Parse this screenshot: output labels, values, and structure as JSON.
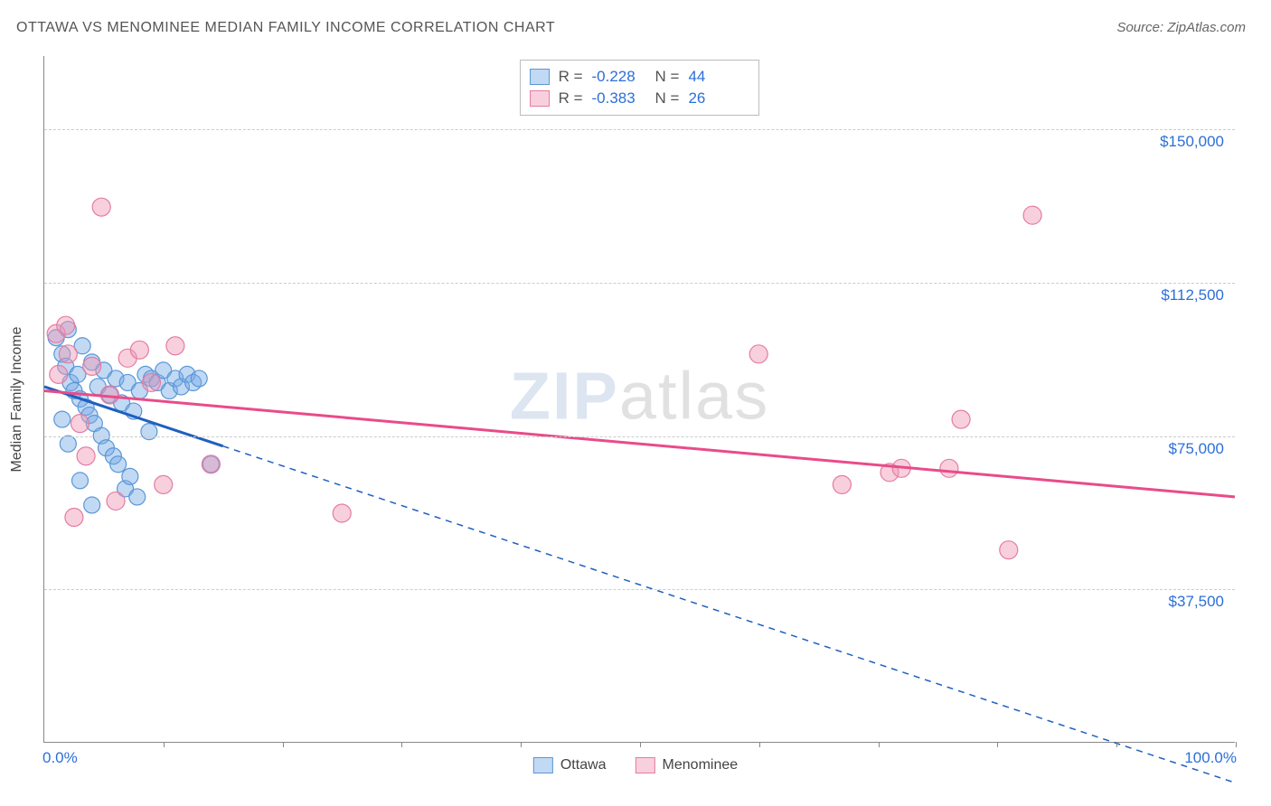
{
  "title": "OTTAWA VS MENOMINEE MEDIAN FAMILY INCOME CORRELATION CHART",
  "source": "Source: ZipAtlas.com",
  "watermark": {
    "part1": "ZIP",
    "part2": "atlas"
  },
  "yaxis_title": "Median Family Income",
  "chart": {
    "type": "scatter",
    "background_color": "#ffffff",
    "grid_color": "#cccccc",
    "axis_color": "#888888",
    "text_color": "#555555",
    "value_color": "#2c6fd8",
    "xlim": [
      0,
      100
    ],
    "ylim": [
      0,
      168000
    ],
    "x_ticks": [
      10,
      20,
      30,
      40,
      50,
      60,
      70,
      80,
      90,
      100
    ],
    "x_tick_labels": {
      "start": "0.0%",
      "end": "100.0%"
    },
    "y_gridlines": [
      {
        "v": 37500,
        "label": "$37,500"
      },
      {
        "v": 75000,
        "label": "$75,000"
      },
      {
        "v": 112500,
        "label": "$112,500"
      },
      {
        "v": 150000,
        "label": "$150,000"
      }
    ],
    "series": [
      {
        "name": "Ottawa",
        "fill": "rgba(120,170,230,0.45)",
        "stroke": "#5a97d6",
        "line_color": "#1f5fbf",
        "marker_r": 9,
        "R": "-0.228",
        "N": "44",
        "trend": {
          "x1": 0,
          "y1": 87000,
          "x2": 100,
          "y2": -10000,
          "solid_until_x": 15
        },
        "points": [
          {
            "x": 1,
            "y": 99000
          },
          {
            "x": 1.5,
            "y": 95000
          },
          {
            "x": 1.8,
            "y": 92000
          },
          {
            "x": 2,
            "y": 101000
          },
          {
            "x": 2.2,
            "y": 88000
          },
          {
            "x": 2.5,
            "y": 86000
          },
          {
            "x": 2.8,
            "y": 90000
          },
          {
            "x": 3,
            "y": 84000
          },
          {
            "x": 3.2,
            "y": 97000
          },
          {
            "x": 3.5,
            "y": 82000
          },
          {
            "x": 3.8,
            "y": 80000
          },
          {
            "x": 4,
            "y": 93000
          },
          {
            "x": 4.2,
            "y": 78000
          },
          {
            "x": 4.5,
            "y": 87000
          },
          {
            "x": 4.8,
            "y": 75000
          },
          {
            "x": 5,
            "y": 91000
          },
          {
            "x": 5.2,
            "y": 72000
          },
          {
            "x": 5.5,
            "y": 85000
          },
          {
            "x": 5.8,
            "y": 70000
          },
          {
            "x": 6,
            "y": 89000
          },
          {
            "x": 6.2,
            "y": 68000
          },
          {
            "x": 6.5,
            "y": 83000
          },
          {
            "x": 6.8,
            "y": 62000
          },
          {
            "x": 7,
            "y": 88000
          },
          {
            "x": 7.2,
            "y": 65000
          },
          {
            "x": 7.5,
            "y": 81000
          },
          {
            "x": 7.8,
            "y": 60000
          },
          {
            "x": 8,
            "y": 86000
          },
          {
            "x": 8.5,
            "y": 90000
          },
          {
            "x": 8.8,
            "y": 76000
          },
          {
            "x": 9,
            "y": 89000
          },
          {
            "x": 9.5,
            "y": 88000
          },
          {
            "x": 10,
            "y": 91000
          },
          {
            "x": 10.5,
            "y": 86000
          },
          {
            "x": 11,
            "y": 89000
          },
          {
            "x": 11.5,
            "y": 87000
          },
          {
            "x": 12,
            "y": 90000
          },
          {
            "x": 12.5,
            "y": 88000
          },
          {
            "x": 13,
            "y": 89000
          },
          {
            "x": 14,
            "y": 68000
          },
          {
            "x": 4,
            "y": 58000
          },
          {
            "x": 3,
            "y": 64000
          },
          {
            "x": 2,
            "y": 73000
          },
          {
            "x": 1.5,
            "y": 79000
          }
        ]
      },
      {
        "name": "Menominee",
        "fill": "rgba(240,150,180,0.45)",
        "stroke": "#e47ba3",
        "line_color": "#e94b8a",
        "marker_r": 10,
        "R": "-0.383",
        "N": "26",
        "trend": {
          "x1": 0,
          "y1": 86000,
          "x2": 100,
          "y2": 60000,
          "solid_until_x": 100
        },
        "points": [
          {
            "x": 1,
            "y": 100000
          },
          {
            "x": 2,
            "y": 95000
          },
          {
            "x": 3,
            "y": 78000
          },
          {
            "x": 4,
            "y": 92000
          },
          {
            "x": 4.8,
            "y": 131000
          },
          {
            "x": 5.5,
            "y": 85000
          },
          {
            "x": 6,
            "y": 59000
          },
          {
            "x": 7,
            "y": 94000
          },
          {
            "x": 8,
            "y": 96000
          },
          {
            "x": 9,
            "y": 88000
          },
          {
            "x": 10,
            "y": 63000
          },
          {
            "x": 11,
            "y": 97000
          },
          {
            "x": 14,
            "y": 68000
          },
          {
            "x": 25,
            "y": 56000
          },
          {
            "x": 60,
            "y": 95000
          },
          {
            "x": 67,
            "y": 63000
          },
          {
            "x": 71,
            "y": 66000
          },
          {
            "x": 72,
            "y": 67000
          },
          {
            "x": 76,
            "y": 67000
          },
          {
            "x": 77,
            "y": 79000
          },
          {
            "x": 81,
            "y": 47000
          },
          {
            "x": 83,
            "y": 129000
          },
          {
            "x": 2.5,
            "y": 55000
          },
          {
            "x": 3.5,
            "y": 70000
          },
          {
            "x": 1.2,
            "y": 90000
          },
          {
            "x": 1.8,
            "y": 102000
          }
        ]
      }
    ],
    "legend": {
      "labels": {
        "R": "R =",
        "N": "N ="
      }
    }
  }
}
